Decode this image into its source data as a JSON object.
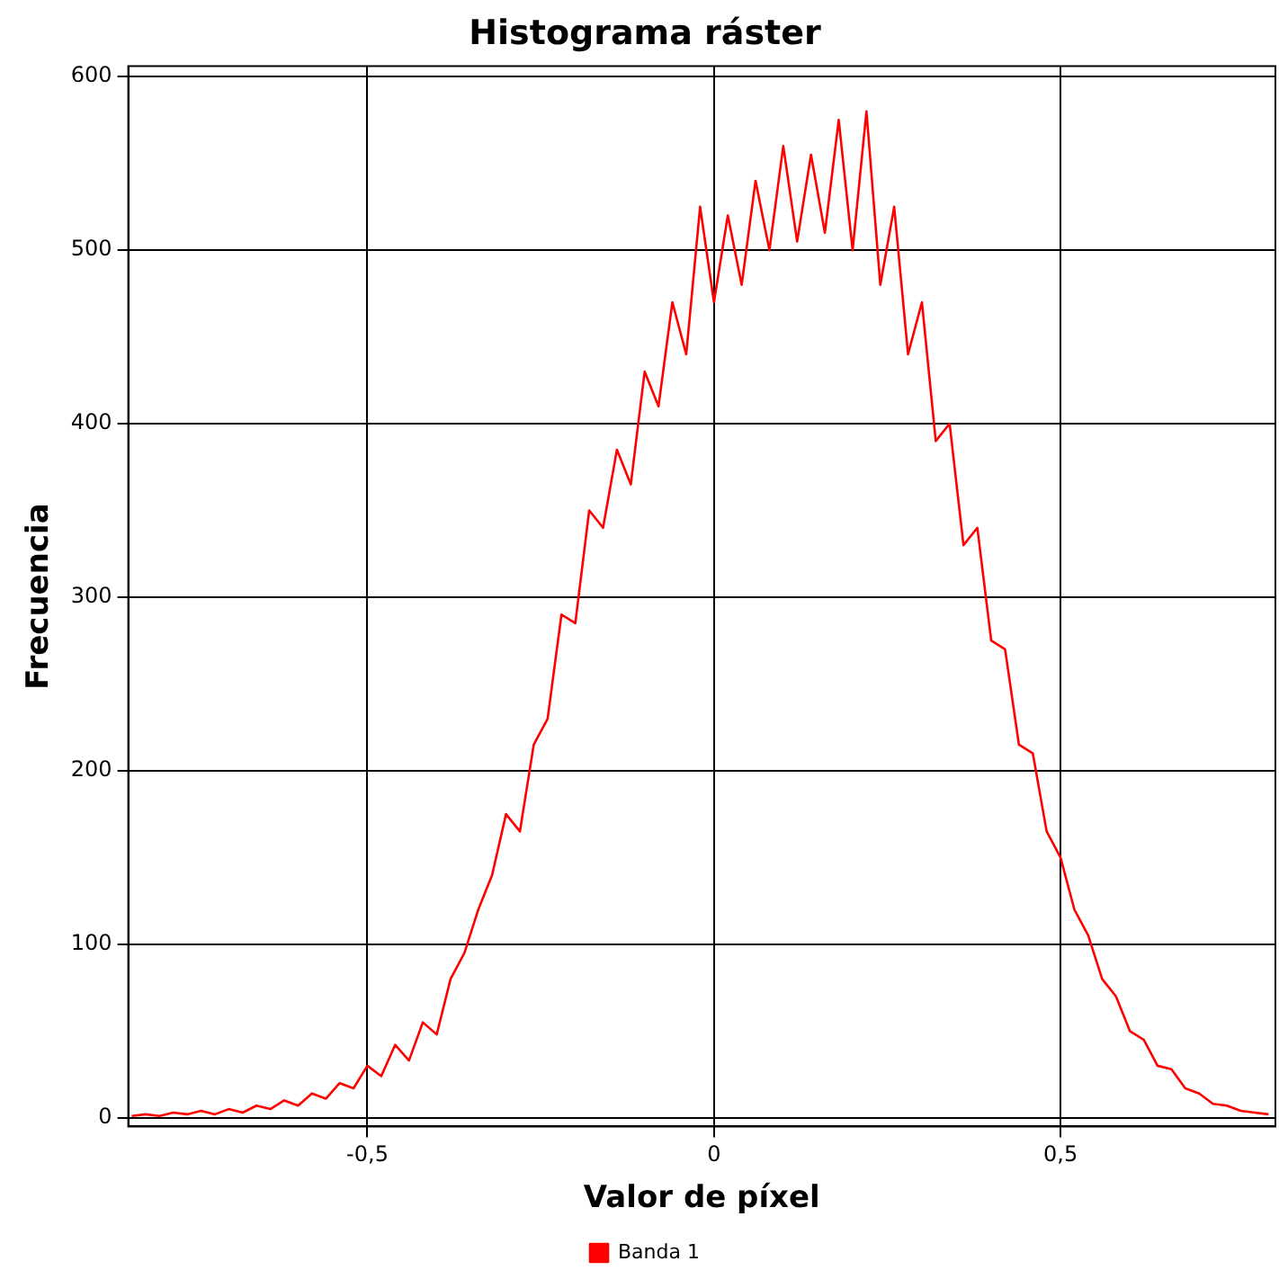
{
  "chart_data": {
    "type": "line",
    "title": "Histograma ráster",
    "xlabel": "Valor de píxel",
    "ylabel": "Frecuencia",
    "x": [
      -0.84,
      -0.82,
      -0.8,
      -0.78,
      -0.76,
      -0.74,
      -0.72,
      -0.7,
      -0.68,
      -0.66,
      -0.64,
      -0.62,
      -0.6,
      -0.58,
      -0.56,
      -0.54,
      -0.52,
      -0.5,
      -0.48,
      -0.46,
      -0.44,
      -0.42,
      -0.4,
      -0.38,
      -0.36,
      -0.34,
      -0.32,
      -0.3,
      -0.28,
      -0.26,
      -0.24,
      -0.22,
      -0.2,
      -0.18,
      -0.16,
      -0.14,
      -0.12,
      -0.1,
      -0.08,
      -0.06,
      -0.04,
      -0.02,
      0.0,
      0.02,
      0.04,
      0.06,
      0.08,
      0.1,
      0.12,
      0.14,
      0.16,
      0.18,
      0.2,
      0.22,
      0.24,
      0.26,
      0.28,
      0.3,
      0.32,
      0.34,
      0.36,
      0.38,
      0.4,
      0.42,
      0.44,
      0.46,
      0.48,
      0.5,
      0.52,
      0.54,
      0.56,
      0.58,
      0.6,
      0.62,
      0.64,
      0.66,
      0.68,
      0.7,
      0.72,
      0.74,
      0.76,
      0.78,
      0.8
    ],
    "series": [
      {
        "name": "Banda 1",
        "color": "#ff0000",
        "values": [
          1,
          2,
          1,
          3,
          2,
          4,
          2,
          5,
          3,
          7,
          5,
          10,
          7,
          14,
          11,
          20,
          17,
          30,
          24,
          42,
          33,
          55,
          48,
          80,
          95,
          120,
          140,
          175,
          165,
          215,
          230,
          290,
          285,
          350,
          340,
          385,
          365,
          430,
          410,
          470,
          440,
          525,
          470,
          520,
          480,
          540,
          500,
          560,
          505,
          555,
          510,
          575,
          500,
          580,
          480,
          525,
          440,
          470,
          390,
          400,
          330,
          340,
          275,
          270,
          215,
          210,
          165,
          150,
          120,
          105,
          80,
          70,
          50,
          45,
          30,
          28,
          17,
          14,
          8,
          7,
          4,
          3,
          2
        ]
      }
    ],
    "xlim": [
      -0.845,
      0.81
    ],
    "xticks": [
      {
        "value": -0.5,
        "label": "-0,5"
      },
      0,
      {
        "value": 0.5,
        "label": "0,5"
      }
    ],
    "ylim": [
      -5,
      606
    ],
    "yticks": [
      0,
      100,
      200,
      300,
      400,
      500,
      600
    ],
    "grid": true,
    "legend": "bottom",
    "marker": "none",
    "line_style": "solid"
  }
}
